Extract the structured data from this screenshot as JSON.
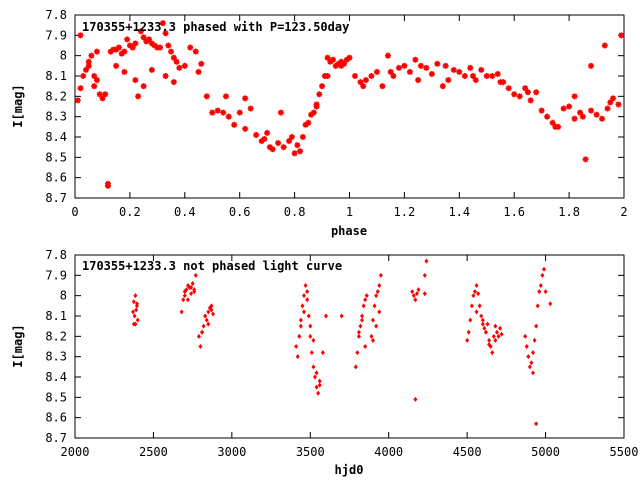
{
  "chart_data": [
    {
      "type": "scatter",
      "title": "170355+1233.3 phased with P=123.50day",
      "xlabel": "phase",
      "ylabel": "I[mag]",
      "xlim": [
        0,
        2
      ],
      "ylim": [
        7.8,
        8.7
      ],
      "y_inverted": true,
      "grid": false,
      "marker_color": "#ff0000",
      "marker": "star",
      "x_ticks": [
        "0",
        "0.2",
        "0.4",
        "0.6",
        "0.8",
        "1",
        "1.2",
        "1.4",
        "1.6",
        "1.8",
        "2"
      ],
      "y_ticks": [
        "7.8",
        "7.9",
        "8",
        "8.1",
        "8.2",
        "8.3",
        "8.4",
        "8.5",
        "8.6",
        "8.7"
      ],
      "series": [
        {
          "x": [
            0.01,
            0.02,
            0.03,
            0.04,
            0.05,
            0.06,
            0.07,
            0.07,
            0.08,
            0.09,
            0.1,
            0.11,
            0.12,
            0.13,
            0.14,
            0.15,
            0.16,
            0.17,
            0.18,
            0.19,
            0.2,
            0.21,
            0.22,
            0.23,
            0.24,
            0.25,
            0.26,
            0.27,
            0.28,
            0.29,
            0.3,
            0.31,
            0.32,
            0.33,
            0.34,
            0.35,
            0.36,
            0.37,
            0.38,
            0.4,
            0.42,
            0.44,
            0.46,
            0.48,
            0.5,
            0.52,
            0.54,
            0.56,
            0.58,
            0.6,
            0.62,
            0.64,
            0.66,
            0.68,
            0.69,
            0.7,
            0.71,
            0.72,
            0.74,
            0.76,
            0.78,
            0.8,
            0.81,
            0.82,
            0.83,
            0.84,
            0.85,
            0.86,
            0.87,
            0.88,
            0.89,
            0.9,
            0.91,
            0.92,
            0.93,
            0.94,
            0.95,
            0.96,
            0.97,
            0.98,
            0.99,
            1.0,
            1.02,
            1.04,
            1.06,
            1.08,
            1.1,
            1.12,
            1.14,
            1.16,
            1.18,
            1.2,
            1.22,
            1.24,
            1.26,
            1.28,
            1.3,
            1.32,
            1.34,
            1.36,
            1.38,
            1.4,
            1.42,
            1.44,
            1.46,
            1.48,
            1.5,
            1.52,
            1.54,
            1.56,
            1.58,
            1.6,
            1.62,
            1.64,
            1.66,
            1.68,
            1.7,
            1.72,
            1.74,
            1.76,
            1.78,
            1.8,
            1.82,
            1.84,
            1.85,
            1.86,
            1.88,
            1.9,
            1.92,
            1.94,
            1.95,
            1.96,
            1.98,
            1.99,
            0.12,
            0.02,
            0.05,
            0.08,
            0.15,
            0.18,
            0.22,
            0.25,
            0.28,
            0.33,
            0.36,
            0.45,
            0.55,
            0.62,
            0.75,
            0.79,
            0.88,
            0.92,
            0.97,
            1.05,
            1.15,
            1.25,
            1.35,
            1.45,
            1.55,
            1.65,
            1.75,
            1.82,
            1.88,
            1.93
          ],
          "y": [
            8.22,
            8.16,
            8.1,
            8.07,
            8.03,
            8.0,
            8.1,
            8.15,
            7.98,
            8.19,
            8.21,
            8.19,
            8.63,
            7.98,
            7.97,
            7.97,
            7.96,
            7.99,
            7.98,
            7.92,
            7.95,
            7.96,
            7.94,
            8.2,
            7.88,
            7.91,
            7.93,
            7.92,
            7.94,
            7.95,
            7.96,
            7.96,
            7.84,
            7.89,
            7.95,
            7.98,
            8.01,
            8.03,
            8.06,
            8.05,
            7.96,
            7.98,
            8.04,
            8.2,
            8.28,
            8.27,
            8.28,
            8.3,
            8.34,
            8.28,
            8.21,
            8.26,
            8.39,
            8.42,
            8.41,
            8.38,
            8.45,
            8.46,
            8.43,
            8.45,
            8.42,
            8.48,
            8.44,
            8.47,
            8.4,
            8.34,
            8.33,
            8.29,
            8.28,
            8.24,
            8.19,
            8.15,
            8.1,
            8.01,
            8.03,
            8.02,
            8.05,
            8.04,
            8.03,
            8.04,
            8.02,
            8.01,
            8.1,
            8.13,
            8.12,
            8.1,
            8.08,
            8.15,
            8.0,
            8.1,
            8.06,
            8.05,
            8.08,
            8.02,
            8.05,
            8.06,
            8.09,
            8.04,
            8.15,
            8.12,
            8.07,
            8.08,
            8.1,
            8.06,
            8.12,
            8.07,
            8.1,
            8.1,
            8.09,
            8.13,
            8.16,
            8.19,
            8.2,
            8.16,
            8.22,
            8.18,
            8.27,
            8.3,
            8.33,
            8.35,
            8.26,
            8.25,
            8.31,
            8.28,
            8.3,
            8.51,
            8.27,
            8.29,
            8.31,
            8.26,
            8.23,
            8.21,
            8.24,
            7.9,
            8.64,
            7.9,
            8.05,
            8.12,
            8.05,
            8.08,
            8.12,
            8.15,
            8.07,
            8.1,
            8.13,
            8.08,
            8.2,
            8.36,
            8.28,
            8.4,
            8.25,
            8.1,
            8.05,
            8.15,
            8.08,
            8.12,
            8.05,
            8.1,
            8.13,
            8.18,
            8.35,
            8.2,
            8.05,
            7.95
          ]
        }
      ]
    },
    {
      "type": "scatter",
      "title": "170355+1233.3 not phased light curve",
      "xlabel": "hjd0",
      "ylabel": "I[mag]",
      "xlim": [
        2000,
        5500
      ],
      "ylim": [
        7.8,
        8.7
      ],
      "y_inverted": true,
      "grid": false,
      "marker_color": "#ff0000",
      "marker": "diamond",
      "x_ticks": [
        "2000",
        "2500",
        "3000",
        "3500",
        "4000",
        "4500",
        "5000",
        "5500"
      ],
      "y_ticks": [
        "7.8",
        "7.9",
        "8",
        "8.1",
        "8.2",
        "8.3",
        "8.4",
        "8.5",
        "8.6",
        "8.7"
      ],
      "series": [
        {
          "x": [
            2370,
            2375,
            2380,
            2385,
            2390,
            2395,
            2400,
            2375,
            2385,
            2395,
            2680,
            2690,
            2700,
            2710,
            2720,
            2730,
            2740,
            2750,
            2760,
            2770,
            2700,
            2720,
            2740,
            2760,
            2790,
            2800,
            2810,
            2820,
            2830,
            2840,
            2850,
            2860,
            2870,
            2880,
            2810,
            2830,
            2850,
            2870,
            3410,
            3420,
            3430,
            3440,
            3450,
            3460,
            3470,
            3480,
            3490,
            3500,
            3510,
            3520,
            3530,
            3540,
            3550,
            3560,
            3440,
            3460,
            3480,
            3500,
            3520,
            3540,
            3560,
            3580,
            3600,
            3700,
            3790,
            3800,
            3810,
            3820,
            3830,
            3840,
            3850,
            3860,
            3810,
            3830,
            3850,
            3890,
            3900,
            3910,
            3920,
            3930,
            3940,
            3950,
            3900,
            3920,
            3940,
            4150,
            4160,
            4170,
            4180,
            4190,
            4170,
            4230,
            4240,
            4230,
            4500,
            4510,
            4520,
            4530,
            4540,
            4550,
            4560,
            4570,
            4580,
            4590,
            4600,
            4610,
            4620,
            4630,
            4640,
            4650,
            4660,
            4670,
            4680,
            4690,
            4700,
            4710,
            4720,
            4560,
            4600,
            4640,
            4680,
            4870,
            4880,
            4890,
            4900,
            4910,
            4920,
            4930,
            4940,
            4950,
            4960,
            4970,
            4980,
            4990,
            5000,
            5030,
            4940,
            4920
          ],
          "y": [
            8.08,
            8.03,
            8.1,
            8.0,
            8.07,
            8.05,
            8.12,
            8.14,
            8.14,
            8.04,
            8.08,
            8.02,
            7.98,
            7.97,
            7.95,
            7.96,
            7.99,
            7.94,
            7.97,
            7.9,
            8.0,
            8.02,
            7.96,
            7.98,
            8.2,
            8.25,
            8.18,
            8.15,
            8.1,
            8.12,
            8.08,
            8.06,
            8.05,
            8.09,
            8.18,
            8.1,
            8.14,
            8.07,
            8.25,
            8.3,
            8.2,
            8.15,
            8.05,
            8.0,
            7.95,
            8.02,
            8.1,
            8.2,
            8.28,
            8.35,
            8.4,
            8.45,
            8.48,
            8.42,
            8.12,
            8.08,
            7.98,
            8.15,
            8.22,
            8.38,
            8.44,
            8.28,
            8.1,
            8.1,
            8.35,
            8.28,
            8.2,
            8.15,
            8.1,
            8.05,
            8.02,
            8.0,
            8.18,
            8.12,
            8.25,
            8.2,
            8.12,
            8.05,
            8.0,
            7.98,
            7.95,
            7.9,
            8.22,
            8.15,
            8.08,
            7.98,
            8.0,
            8.02,
            7.99,
            7.97,
            8.51,
            7.9,
            7.83,
            7.99,
            8.22,
            8.18,
            8.12,
            8.05,
            8.0,
            7.98,
            7.95,
            7.99,
            8.05,
            8.1,
            8.12,
            8.16,
            8.18,
            8.14,
            8.22,
            8.25,
            8.28,
            8.2,
            8.15,
            8.18,
            8.2,
            8.16,
            8.19,
            8.08,
            8.14,
            8.24,
            8.22,
            8.2,
            8.25,
            8.3,
            8.35,
            8.33,
            8.28,
            8.22,
            8.15,
            8.05,
            7.98,
            7.95,
            7.9,
            7.87,
            7.98,
            8.04,
            8.63,
            8.38
          ]
        }
      ]
    }
  ]
}
